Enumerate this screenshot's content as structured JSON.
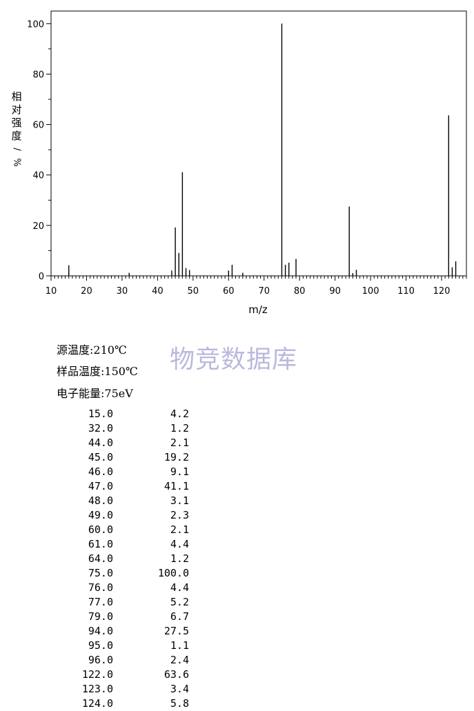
{
  "chart_data": {
    "type": "bar",
    "xlabel": "m/z",
    "ylabel": "相对强度/%",
    "xlim": [
      10,
      127
    ],
    "ylim": [
      0,
      105
    ],
    "xticks": [
      10,
      20,
      30,
      40,
      50,
      60,
      70,
      80,
      90,
      100,
      110,
      120
    ],
    "yticks": [
      0,
      20,
      40,
      60,
      80,
      100
    ],
    "grid": false,
    "peaks": [
      {
        "mz": 15.0,
        "intensity": 4.2
      },
      {
        "mz": 32.0,
        "intensity": 1.2
      },
      {
        "mz": 44.0,
        "intensity": 2.1
      },
      {
        "mz": 45.0,
        "intensity": 19.2
      },
      {
        "mz": 46.0,
        "intensity": 9.1
      },
      {
        "mz": 47.0,
        "intensity": 41.1
      },
      {
        "mz": 48.0,
        "intensity": 3.1
      },
      {
        "mz": 49.0,
        "intensity": 2.3
      },
      {
        "mz": 60.0,
        "intensity": 2.1
      },
      {
        "mz": 61.0,
        "intensity": 4.4
      },
      {
        "mz": 64.0,
        "intensity": 1.2
      },
      {
        "mz": 75.0,
        "intensity": 100.0
      },
      {
        "mz": 76.0,
        "intensity": 4.4
      },
      {
        "mz": 77.0,
        "intensity": 5.2
      },
      {
        "mz": 79.0,
        "intensity": 6.7
      },
      {
        "mz": 94.0,
        "intensity": 27.5
      },
      {
        "mz": 95.0,
        "intensity": 1.1
      },
      {
        "mz": 96.0,
        "intensity": 2.4
      },
      {
        "mz": 122.0,
        "intensity": 63.6
      },
      {
        "mz": 123.0,
        "intensity": 3.4
      },
      {
        "mz": 124.0,
        "intensity": 5.8
      }
    ]
  },
  "conditions": {
    "source_temp": "源温度:210℃",
    "sample_temp": "样品温度:150℃",
    "electron_energy": "电子能量:75eV"
  },
  "watermark": "物竞数据库",
  "table": [
    {
      "mz": "15.0",
      "ab": "4.2"
    },
    {
      "mz": "32.0",
      "ab": "1.2"
    },
    {
      "mz": "44.0",
      "ab": "2.1"
    },
    {
      "mz": "45.0",
      "ab": "19.2"
    },
    {
      "mz": "46.0",
      "ab": "9.1"
    },
    {
      "mz": "47.0",
      "ab": "41.1"
    },
    {
      "mz": "48.0",
      "ab": "3.1"
    },
    {
      "mz": "49.0",
      "ab": "2.3"
    },
    {
      "mz": "60.0",
      "ab": "2.1"
    },
    {
      "mz": "61.0",
      "ab": "4.4"
    },
    {
      "mz": "64.0",
      "ab": "1.2"
    },
    {
      "mz": "75.0",
      "ab": "100.0"
    },
    {
      "mz": "76.0",
      "ab": "4.4"
    },
    {
      "mz": "77.0",
      "ab": "5.2"
    },
    {
      "mz": "79.0",
      "ab": "6.7"
    },
    {
      "mz": "94.0",
      "ab": "27.5"
    },
    {
      "mz": "95.0",
      "ab": "1.1"
    },
    {
      "mz": "96.0",
      "ab": "2.4"
    },
    {
      "mz": "122.0",
      "ab": "63.6"
    },
    {
      "mz": "123.0",
      "ab": "3.4"
    },
    {
      "mz": "124.0",
      "ab": "5.8"
    }
  ]
}
